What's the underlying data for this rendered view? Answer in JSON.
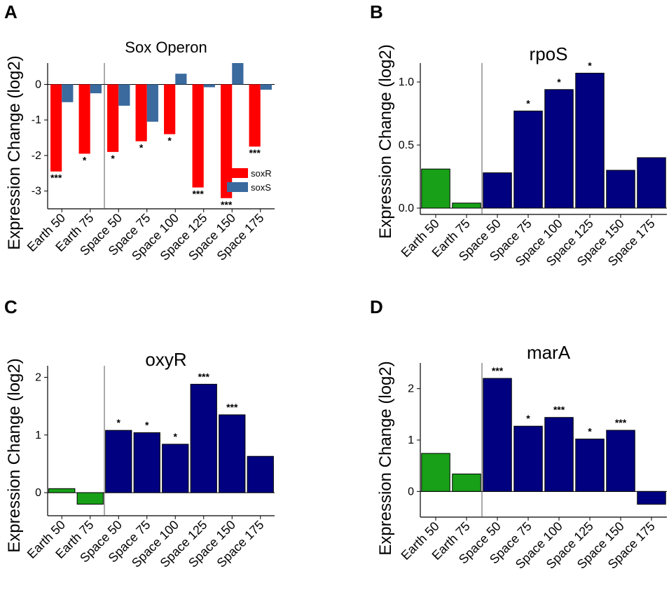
{
  "chart_data": [
    {
      "panel": "A",
      "type": "bar",
      "title": "Sox Operon",
      "xlabel": "",
      "ylabel": "Expression Change (log2)",
      "ylim": [
        -3.5,
        0.6
      ],
      "yticks": [
        -3,
        -2,
        -1,
        0
      ],
      "tick_labels": [
        "-3",
        "-2",
        "-1",
        "0"
      ],
      "categories": [
        "Earth 50",
        "Earth 75",
        "Space 50",
        "Space 75",
        "Space 100",
        "Space 125",
        "Space 150",
        "Space 175"
      ],
      "series": [
        {
          "name": "soxR",
          "color": "#ff0000",
          "values": [
            -2.45,
            -1.95,
            -1.9,
            -1.6,
            -1.4,
            -2.9,
            -3.2,
            -1.75
          ]
        },
        {
          "name": "soxS",
          "color": "#3a6a9e",
          "values": [
            -0.5,
            -0.25,
            -0.6,
            -1.05,
            0.3,
            -0.08,
            0.6,
            -0.15
          ]
        }
      ],
      "significance": [
        "***",
        "*",
        "*",
        "*",
        "*",
        "***",
        "***",
        "***"
      ],
      "legend": [
        "soxR",
        "soxS"
      ],
      "legend_position": "bottom-right"
    },
    {
      "panel": "B",
      "type": "bar",
      "title": "rpoS",
      "xlabel": "",
      "ylabel": "Expression Change (log2)",
      "ylim": [
        -0.05,
        1.15
      ],
      "yticks": [
        0,
        0.5,
        1
      ],
      "tick_labels": [
        "0.0",
        "0.5",
        "1.0"
      ],
      "categories": [
        "Earth 50",
        "Earth 75",
        "Space 50",
        "Space 75",
        "Space 100",
        "Space 125",
        "Space 150",
        "Space 175"
      ],
      "values": [
        0.31,
        0.04,
        0.28,
        0.77,
        0.94,
        1.07,
        0.3,
        0.4
      ],
      "colors": [
        "#18a018",
        "#18a018",
        "#000080",
        "#000080",
        "#000080",
        "#000080",
        "#000080",
        "#000080"
      ],
      "significance": [
        "",
        "",
        "",
        "*",
        "*",
        "*",
        "",
        ""
      ]
    },
    {
      "panel": "C",
      "type": "bar",
      "title": "oxyR",
      "xlabel": "",
      "ylabel": "Expression Change (log2)",
      "ylim": [
        -0.4,
        2.2
      ],
      "yticks": [
        0,
        1,
        2
      ],
      "tick_labels": [
        "0",
        "1",
        "2"
      ],
      "categories": [
        "Earth 50",
        "Earth 75",
        "Space 50",
        "Space 75",
        "Space 100",
        "Space 125",
        "Space 150",
        "Space 175"
      ],
      "values": [
        0.07,
        -0.2,
        1.08,
        1.04,
        0.84,
        1.88,
        1.35,
        0.63
      ],
      "colors": [
        "#18a018",
        "#18a018",
        "#000080",
        "#000080",
        "#000080",
        "#000080",
        "#000080",
        "#000080"
      ],
      "significance": [
        "",
        "",
        "*",
        "*",
        "*",
        "***",
        "***",
        ""
      ]
    },
    {
      "panel": "D",
      "type": "bar",
      "title": "marA",
      "xlabel": "",
      "ylabel": "Expression Change (log2)",
      "ylim": [
        -0.5,
        2.5
      ],
      "yticks": [
        0,
        1,
        2
      ],
      "tick_labels": [
        "0",
        "1",
        "2"
      ],
      "categories": [
        "Earth 50",
        "Earth 75",
        "Space 50",
        "Space 75",
        "Space 100",
        "Space 125",
        "Space 150",
        "Space 175"
      ],
      "values": [
        0.74,
        0.34,
        2.2,
        1.27,
        1.44,
        1.02,
        1.19,
        -0.25
      ],
      "colors": [
        "#18a018",
        "#18a018",
        "#000080",
        "#000080",
        "#000080",
        "#000080",
        "#000080",
        "#000080"
      ],
      "significance": [
        "",
        "",
        "***",
        "*",
        "***",
        "*",
        "***",
        ""
      ]
    }
  ]
}
